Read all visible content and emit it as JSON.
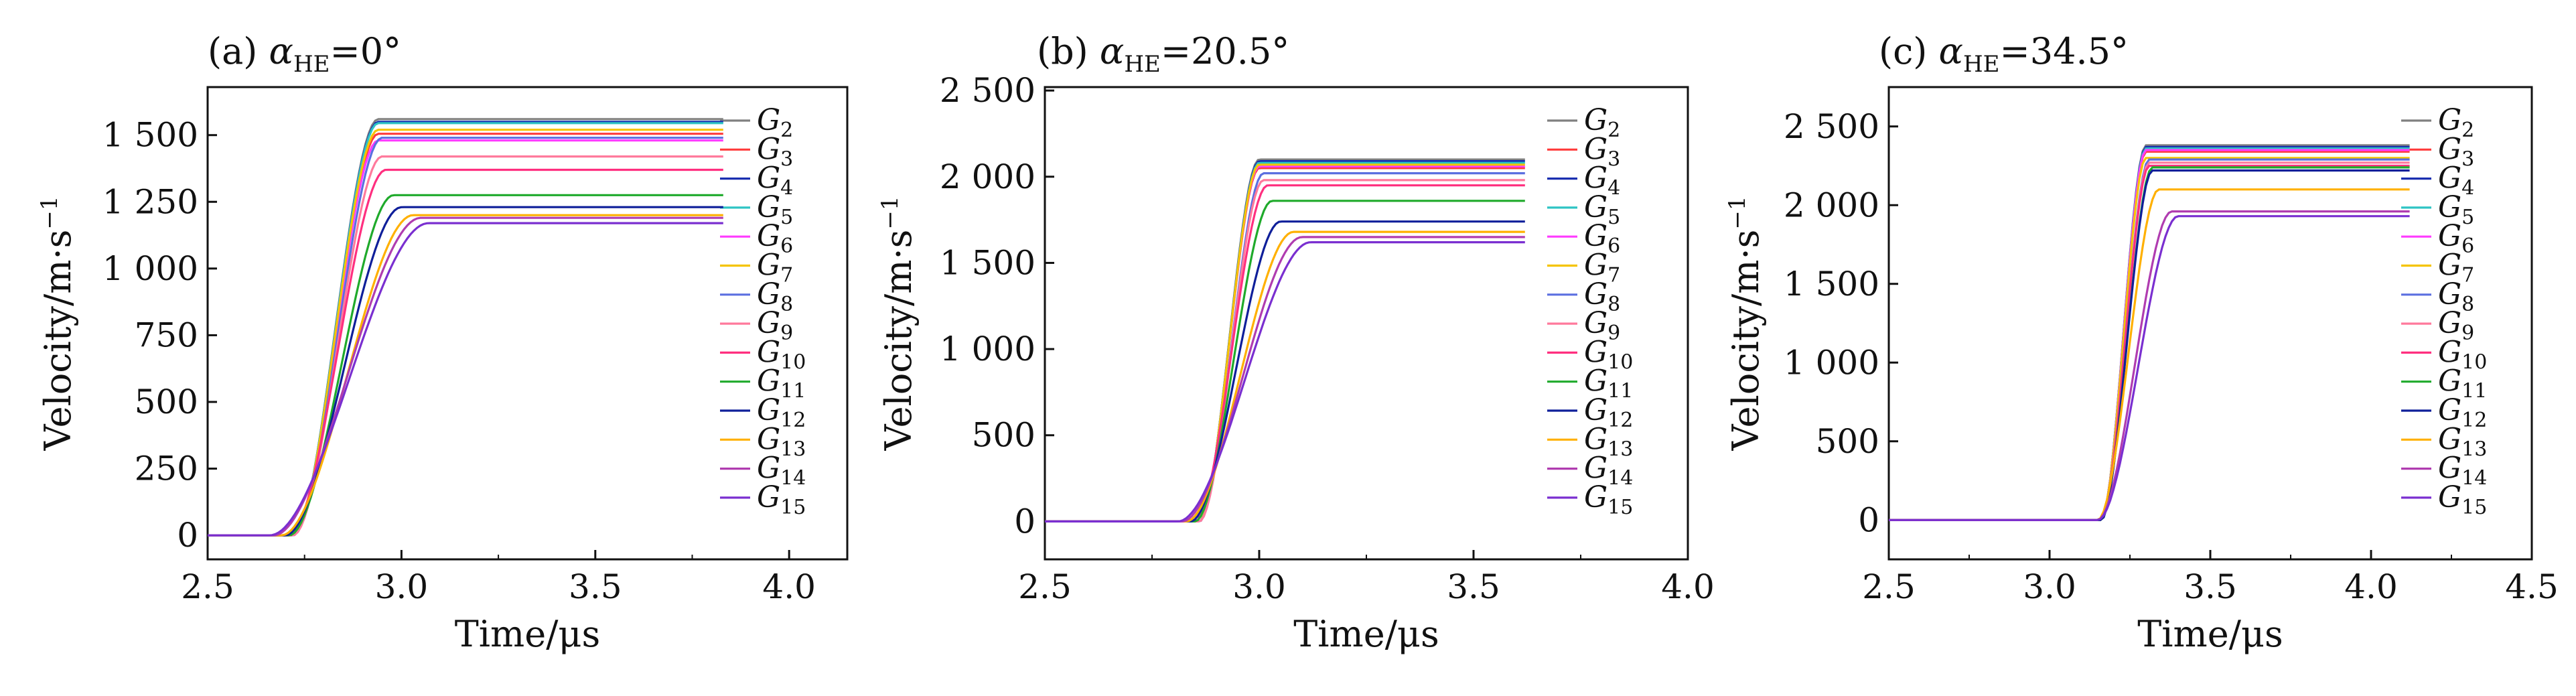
{
  "chart_data": [
    {
      "type": "line",
      "panel_label": "(a)",
      "title": "(a) αHE=0°",
      "title_parts": {
        "prefix": "(a) ",
        "symbol": "α",
        "sub": "HE",
        "value": "=0°"
      },
      "xlabel": "Time/μs",
      "ylabel": "Velocity/m·s",
      "ylabel_sup": "−1",
      "xlim": [
        2.5,
        4.15
      ],
      "ylim": [
        -90,
        1680
      ],
      "xticks": [
        "2.5",
        "3.0",
        "3.5",
        "4.0"
      ],
      "yticks": [
        "0",
        "250",
        "500",
        "750",
        "1 000",
        "1 250",
        "1 500"
      ],
      "legend_position": "right",
      "grid": false,
      "series": [
        {
          "name": "G2",
          "final": 1560,
          "color": "#808080",
          "rise": {
            "start": 2.72,
            "end": 2.94
          },
          "plateau_end": 3.83
        },
        {
          "name": "G3",
          "final": 1505,
          "color": "#ff3b3b",
          "rise": {
            "start": 2.72,
            "end": 2.94
          },
          "plateau_end": 3.83
        },
        {
          "name": "G4",
          "final": 1550,
          "color": "#1a2fb0",
          "rise": {
            "start": 2.72,
            "end": 2.94
          },
          "plateau_end": 3.83
        },
        {
          "name": "G5",
          "final": 1545,
          "color": "#2ec4c4",
          "rise": {
            "start": 2.72,
            "end": 2.94
          },
          "plateau_end": 3.83
        },
        {
          "name": "G6",
          "final": 1480,
          "color": "#ff3bff",
          "rise": {
            "start": 2.72,
            "end": 2.94
          },
          "plateau_end": 3.83
        },
        {
          "name": "G7",
          "final": 1520,
          "color": "#f5c400",
          "rise": {
            "start": 2.72,
            "end": 2.94
          },
          "plateau_end": 3.83
        },
        {
          "name": "G8",
          "final": 1490,
          "color": "#5b6fe0",
          "rise": {
            "start": 2.72,
            "end": 2.95
          },
          "plateau_end": 3.83
        },
        {
          "name": "G9",
          "final": 1420,
          "color": "#ff7a9c",
          "rise": {
            "start": 2.72,
            "end": 2.95
          },
          "plateau_end": 3.83
        },
        {
          "name": "G10",
          "final": 1370,
          "color": "#ff2f7f",
          "rise": {
            "start": 2.71,
            "end": 2.96
          },
          "plateau_end": 3.83
        },
        {
          "name": "G11",
          "final": 1275,
          "color": "#1faa2b",
          "rise": {
            "start": 2.71,
            "end": 2.98
          },
          "plateau_end": 3.83
        },
        {
          "name": "G12",
          "final": 1230,
          "color": "#0f1f9a",
          "rise": {
            "start": 2.7,
            "end": 3.0
          },
          "plateau_end": 3.83
        },
        {
          "name": "G13",
          "final": 1200,
          "color": "#ffb000",
          "rise": {
            "start": 2.69,
            "end": 3.03
          },
          "plateau_end": 3.83
        },
        {
          "name": "G14",
          "final": 1190,
          "color": "#b03cb0",
          "rise": {
            "start": 2.67,
            "end": 3.05
          },
          "plateau_end": 3.83
        },
        {
          "name": "G15",
          "final": 1170,
          "color": "#7a2fd0",
          "rise": {
            "start": 2.66,
            "end": 3.07
          },
          "plateau_end": 3.83
        }
      ]
    },
    {
      "type": "line",
      "panel_label": "(b)",
      "title": "(b) αHE=20.5°",
      "title_parts": {
        "prefix": "(b) ",
        "symbol": "α",
        "sub": "HE",
        "value": "=20.5°"
      },
      "xlabel": "Time/μs",
      "ylabel": "Velocity/m·s",
      "ylabel_sup": "−1",
      "xlim": [
        2.5,
        4.0
      ],
      "ylim": [
        -220,
        2520
      ],
      "xticks": [
        "2.5",
        "3.0",
        "3.5",
        "4.0"
      ],
      "yticks": [
        "0",
        "500",
        "1 000",
        "1 500",
        "2 000",
        "2 500"
      ],
      "legend_position": "right",
      "grid": false,
      "series": [
        {
          "name": "G2",
          "final": 2100,
          "color": "#808080",
          "rise": {
            "start": 2.86,
            "end": 3.0
          },
          "plateau_end": 3.62
        },
        {
          "name": "G3",
          "final": 2050,
          "color": "#ff3b3b",
          "rise": {
            "start": 2.86,
            "end": 3.0
          },
          "plateau_end": 3.62
        },
        {
          "name": "G4",
          "final": 2090,
          "color": "#1a2fb0",
          "rise": {
            "start": 2.86,
            "end": 3.0
          },
          "plateau_end": 3.62
        },
        {
          "name": "G5",
          "final": 2080,
          "color": "#2ec4c4",
          "rise": {
            "start": 2.86,
            "end": 3.0
          },
          "plateau_end": 3.62
        },
        {
          "name": "G6",
          "final": 2060,
          "color": "#ff3bff",
          "rise": {
            "start": 2.86,
            "end": 3.0
          },
          "plateau_end": 3.62
        },
        {
          "name": "G7",
          "final": 2070,
          "color": "#f5c400",
          "rise": {
            "start": 2.86,
            "end": 3.0
          },
          "plateau_end": 3.62
        },
        {
          "name": "G8",
          "final": 2020,
          "color": "#5b6fe0",
          "rise": {
            "start": 2.86,
            "end": 3.01
          },
          "plateau_end": 3.62
        },
        {
          "name": "G9",
          "final": 1980,
          "color": "#ff7a9c",
          "rise": {
            "start": 2.86,
            "end": 3.01
          },
          "plateau_end": 3.62
        },
        {
          "name": "G10",
          "final": 1950,
          "color": "#ff2f7f",
          "rise": {
            "start": 2.85,
            "end": 3.02
          },
          "plateau_end": 3.62
        },
        {
          "name": "G11",
          "final": 1860,
          "color": "#1faa2b",
          "rise": {
            "start": 2.85,
            "end": 3.03
          },
          "plateau_end": 3.62
        },
        {
          "name": "G12",
          "final": 1740,
          "color": "#0f1f9a",
          "rise": {
            "start": 2.84,
            "end": 3.05
          },
          "plateau_end": 3.62
        },
        {
          "name": "G13",
          "final": 1680,
          "color": "#ffb000",
          "rise": {
            "start": 2.83,
            "end": 3.08
          },
          "plateau_end": 3.62
        },
        {
          "name": "G14",
          "final": 1650,
          "color": "#b03cb0",
          "rise": {
            "start": 2.82,
            "end": 3.1
          },
          "plateau_end": 3.62
        },
        {
          "name": "G15",
          "final": 1620,
          "color": "#7a2fd0",
          "rise": {
            "start": 2.81,
            "end": 3.12
          },
          "plateau_end": 3.62
        }
      ]
    },
    {
      "type": "line",
      "panel_label": "(c)",
      "title": "(c) αHE=34.5°",
      "title_parts": {
        "prefix": "(c) ",
        "symbol": "α",
        "sub": "HE",
        "value": "=34.5°"
      },
      "xlabel": "Time/μs",
      "ylabel": "Velocity/m·s",
      "ylabel_sup": "−1",
      "xlim": [
        2.5,
        4.5
      ],
      "ylim": [
        -250,
        2750
      ],
      "xticks": [
        "2.5",
        "3.0",
        "3.5",
        "4.0",
        "4.5"
      ],
      "yticks": [
        "0",
        "500",
        "1 000",
        "1 500",
        "2 000",
        "2 500"
      ],
      "legend_position": "right",
      "grid": false,
      "series": [
        {
          "name": "G2",
          "final": 2380,
          "color": "#808080",
          "rise": {
            "start": 3.16,
            "end": 3.3
          },
          "plateau_end": 4.12
        },
        {
          "name": "G3",
          "final": 2340,
          "color": "#ff3b3b",
          "rise": {
            "start": 3.16,
            "end": 3.3
          },
          "plateau_end": 4.12
        },
        {
          "name": "G4",
          "final": 2370,
          "color": "#1a2fb0",
          "rise": {
            "start": 3.16,
            "end": 3.3
          },
          "plateau_end": 4.12
        },
        {
          "name": "G5",
          "final": 2360,
          "color": "#2ec4c4",
          "rise": {
            "start": 3.16,
            "end": 3.3
          },
          "plateau_end": 4.12
        },
        {
          "name": "G6",
          "final": 2350,
          "color": "#ff3bff",
          "rise": {
            "start": 3.16,
            "end": 3.3
          },
          "plateau_end": 4.12
        },
        {
          "name": "G7",
          "final": 2300,
          "color": "#f5c400",
          "rise": {
            "start": 3.16,
            "end": 3.3
          },
          "plateau_end": 4.12
        },
        {
          "name": "G8",
          "final": 2290,
          "color": "#5b6fe0",
          "rise": {
            "start": 3.16,
            "end": 3.31
          },
          "plateau_end": 4.12
        },
        {
          "name": "G9",
          "final": 2270,
          "color": "#ff7a9c",
          "rise": {
            "start": 3.16,
            "end": 3.31
          },
          "plateau_end": 4.12
        },
        {
          "name": "G10",
          "final": 2250,
          "color": "#ff2f7f",
          "rise": {
            "start": 3.16,
            "end": 3.31
          },
          "plateau_end": 4.12
        },
        {
          "name": "G11",
          "final": 2240,
          "color": "#1faa2b",
          "rise": {
            "start": 3.16,
            "end": 3.32
          },
          "plateau_end": 4.12
        },
        {
          "name": "G12",
          "final": 2220,
          "color": "#0f1f9a",
          "rise": {
            "start": 3.16,
            "end": 3.32
          },
          "plateau_end": 4.12
        },
        {
          "name": "G13",
          "final": 2100,
          "color": "#ffb000",
          "rise": {
            "start": 3.15,
            "end": 3.34
          },
          "plateau_end": 4.12
        },
        {
          "name": "G14",
          "final": 1960,
          "color": "#b03cb0",
          "rise": {
            "start": 3.15,
            "end": 3.38
          },
          "plateau_end": 4.12
        },
        {
          "name": "G15",
          "final": 1930,
          "color": "#7a2fd0",
          "rise": {
            "start": 3.15,
            "end": 3.4
          },
          "plateau_end": 4.12
        }
      ]
    }
  ]
}
